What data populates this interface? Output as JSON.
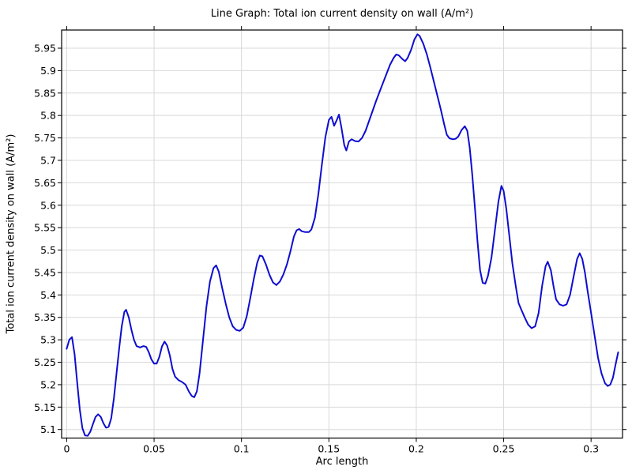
{
  "chart_data": {
    "type": "line",
    "title": "Line Graph: Total ion current density on wall (A/m²)",
    "xlabel": "Arc length",
    "ylabel": "Total ion current density on wall (A/m²)",
    "xlim": [
      -0.0029,
      0.318
    ],
    "ylim": [
      5.081,
      5.9905
    ],
    "grid": true,
    "legend_position": "none",
    "line_color": "#0d0dd0",
    "grid_color": "#d8d8d8",
    "frame_color": "#000000",
    "background_color": "#ffffff",
    "xticks": [
      0,
      0.05,
      0.1,
      0.15,
      0.2,
      0.25,
      0.3
    ],
    "xtick_labels": [
      "0",
      "0.05",
      "0.1",
      "0.15",
      "0.2",
      "0.25",
      "0.3"
    ],
    "yticks": [
      5.1,
      5.15,
      5.2,
      5.25,
      5.3,
      5.35,
      5.4,
      5.45,
      5.5,
      5.55,
      5.6,
      5.65,
      5.7,
      5.75,
      5.8,
      5.85,
      5.9,
      5.95
    ],
    "ytick_labels": [
      "5.1",
      "5.15",
      "5.2",
      "5.25",
      "5.3",
      "5.35",
      "5.4",
      "5.45",
      "5.5",
      "5.55",
      "5.6",
      "5.65",
      "5.7",
      "5.75",
      "5.8",
      "5.85",
      "5.9",
      "5.95"
    ],
    "series": [
      {
        "name": "Total ion current density on wall",
        "points": [
          [
            0.0,
            5.28
          ],
          [
            0.0015,
            5.3
          ],
          [
            0.003,
            5.306
          ],
          [
            0.0045,
            5.268
          ],
          [
            0.006,
            5.205
          ],
          [
            0.0075,
            5.145
          ],
          [
            0.009,
            5.103
          ],
          [
            0.0105,
            5.087
          ],
          [
            0.012,
            5.086
          ],
          [
            0.0135,
            5.095
          ],
          [
            0.015,
            5.112
          ],
          [
            0.0165,
            5.128
          ],
          [
            0.018,
            5.134
          ],
          [
            0.0195,
            5.128
          ],
          [
            0.021,
            5.114
          ],
          [
            0.0225,
            5.104
          ],
          [
            0.024,
            5.106
          ],
          [
            0.0255,
            5.125
          ],
          [
            0.027,
            5.17
          ],
          [
            0.0285,
            5.225
          ],
          [
            0.03,
            5.28
          ],
          [
            0.0315,
            5.33
          ],
          [
            0.033,
            5.362
          ],
          [
            0.034,
            5.367
          ],
          [
            0.0355,
            5.35
          ],
          [
            0.037,
            5.323
          ],
          [
            0.0385,
            5.3
          ],
          [
            0.04,
            5.286
          ],
          [
            0.042,
            5.283
          ],
          [
            0.044,
            5.286
          ],
          [
            0.0455,
            5.284
          ],
          [
            0.047,
            5.272
          ],
          [
            0.0485,
            5.256
          ],
          [
            0.05,
            5.247
          ],
          [
            0.0515,
            5.247
          ],
          [
            0.053,
            5.262
          ],
          [
            0.0545,
            5.285
          ],
          [
            0.056,
            5.296
          ],
          [
            0.0575,
            5.287
          ],
          [
            0.059,
            5.265
          ],
          [
            0.0605,
            5.235
          ],
          [
            0.062,
            5.218
          ],
          [
            0.064,
            5.21
          ],
          [
            0.066,
            5.206
          ],
          [
            0.068,
            5.2
          ],
          [
            0.07,
            5.184
          ],
          [
            0.0715,
            5.175
          ],
          [
            0.073,
            5.172
          ],
          [
            0.0745,
            5.185
          ],
          [
            0.076,
            5.225
          ],
          [
            0.078,
            5.3
          ],
          [
            0.08,
            5.375
          ],
          [
            0.082,
            5.43
          ],
          [
            0.084,
            5.46
          ],
          [
            0.0855,
            5.466
          ],
          [
            0.087,
            5.452
          ],
          [
            0.089,
            5.415
          ],
          [
            0.091,
            5.38
          ],
          [
            0.093,
            5.35
          ],
          [
            0.095,
            5.33
          ],
          [
            0.097,
            5.322
          ],
          [
            0.099,
            5.32
          ],
          [
            0.101,
            5.327
          ],
          [
            0.103,
            5.352
          ],
          [
            0.105,
            5.392
          ],
          [
            0.107,
            5.435
          ],
          [
            0.109,
            5.472
          ],
          [
            0.1105,
            5.488
          ],
          [
            0.112,
            5.486
          ],
          [
            0.114,
            5.468
          ],
          [
            0.116,
            5.445
          ],
          [
            0.118,
            5.428
          ],
          [
            0.12,
            5.422
          ],
          [
            0.122,
            5.43
          ],
          [
            0.124,
            5.446
          ],
          [
            0.126,
            5.468
          ],
          [
            0.128,
            5.497
          ],
          [
            0.13,
            5.53
          ],
          [
            0.1315,
            5.544
          ],
          [
            0.133,
            5.547
          ],
          [
            0.1345,
            5.542
          ],
          [
            0.1365,
            5.54
          ],
          [
            0.1385,
            5.54
          ],
          [
            0.14,
            5.546
          ],
          [
            0.142,
            5.572
          ],
          [
            0.144,
            5.625
          ],
          [
            0.146,
            5.69
          ],
          [
            0.148,
            5.752
          ],
          [
            0.15,
            5.79
          ],
          [
            0.1515,
            5.797
          ],
          [
            0.153,
            5.777
          ],
          [
            0.1545,
            5.79
          ],
          [
            0.1558,
            5.802
          ],
          [
            0.1572,
            5.773
          ],
          [
            0.1588,
            5.734
          ],
          [
            0.16,
            5.722
          ],
          [
            0.1615,
            5.742
          ],
          [
            0.163,
            5.747
          ],
          [
            0.165,
            5.743
          ],
          [
            0.167,
            5.742
          ],
          [
            0.169,
            5.75
          ],
          [
            0.171,
            5.766
          ],
          [
            0.173,
            5.788
          ],
          [
            0.175,
            5.81
          ],
          [
            0.177,
            5.832
          ],
          [
            0.179,
            5.853
          ],
          [
            0.181,
            5.873
          ],
          [
            0.183,
            5.893
          ],
          [
            0.185,
            5.913
          ],
          [
            0.187,
            5.928
          ],
          [
            0.1885,
            5.936
          ],
          [
            0.19,
            5.934
          ],
          [
            0.192,
            5.926
          ],
          [
            0.1936,
            5.921
          ],
          [
            0.195,
            5.928
          ],
          [
            0.197,
            5.946
          ],
          [
            0.199,
            5.97
          ],
          [
            0.2007,
            5.981
          ],
          [
            0.202,
            5.977
          ],
          [
            0.204,
            5.96
          ],
          [
            0.206,
            5.937
          ],
          [
            0.208,
            5.908
          ],
          [
            0.21,
            5.877
          ],
          [
            0.212,
            5.845
          ],
          [
            0.214,
            5.814
          ],
          [
            0.216,
            5.78
          ],
          [
            0.2175,
            5.757
          ],
          [
            0.219,
            5.749
          ],
          [
            0.221,
            5.747
          ],
          [
            0.2225,
            5.748
          ],
          [
            0.224,
            5.753
          ],
          [
            0.226,
            5.768
          ],
          [
            0.2278,
            5.776
          ],
          [
            0.2292,
            5.766
          ],
          [
            0.2306,
            5.728
          ],
          [
            0.232,
            5.67
          ],
          [
            0.2335,
            5.598
          ],
          [
            0.235,
            5.52
          ],
          [
            0.2365,
            5.455
          ],
          [
            0.238,
            5.427
          ],
          [
            0.2395,
            5.425
          ],
          [
            0.241,
            5.442
          ],
          [
            0.243,
            5.483
          ],
          [
            0.245,
            5.545
          ],
          [
            0.247,
            5.608
          ],
          [
            0.2487,
            5.643
          ],
          [
            0.25,
            5.632
          ],
          [
            0.2515,
            5.592
          ],
          [
            0.253,
            5.54
          ],
          [
            0.255,
            5.47
          ],
          [
            0.257,
            5.418
          ],
          [
            0.2585,
            5.382
          ],
          [
            0.26,
            5.368
          ],
          [
            0.262,
            5.35
          ],
          [
            0.264,
            5.334
          ],
          [
            0.266,
            5.326
          ],
          [
            0.268,
            5.33
          ],
          [
            0.27,
            5.36
          ],
          [
            0.272,
            5.42
          ],
          [
            0.274,
            5.464
          ],
          [
            0.2752,
            5.474
          ],
          [
            0.277,
            5.455
          ],
          [
            0.2785,
            5.42
          ],
          [
            0.28,
            5.39
          ],
          [
            0.282,
            5.379
          ],
          [
            0.284,
            5.376
          ],
          [
            0.286,
            5.379
          ],
          [
            0.288,
            5.4
          ],
          [
            0.29,
            5.44
          ],
          [
            0.292,
            5.48
          ],
          [
            0.2935,
            5.493
          ],
          [
            0.295,
            5.48
          ],
          [
            0.2965,
            5.45
          ],
          [
            0.298,
            5.41
          ],
          [
            0.3,
            5.36
          ],
          [
            0.302,
            5.31
          ],
          [
            0.304,
            5.26
          ],
          [
            0.306,
            5.225
          ],
          [
            0.308,
            5.203
          ],
          [
            0.3095,
            5.197
          ],
          [
            0.311,
            5.2
          ],
          [
            0.3125,
            5.215
          ],
          [
            0.314,
            5.244
          ],
          [
            0.3155,
            5.272
          ]
        ]
      }
    ]
  }
}
